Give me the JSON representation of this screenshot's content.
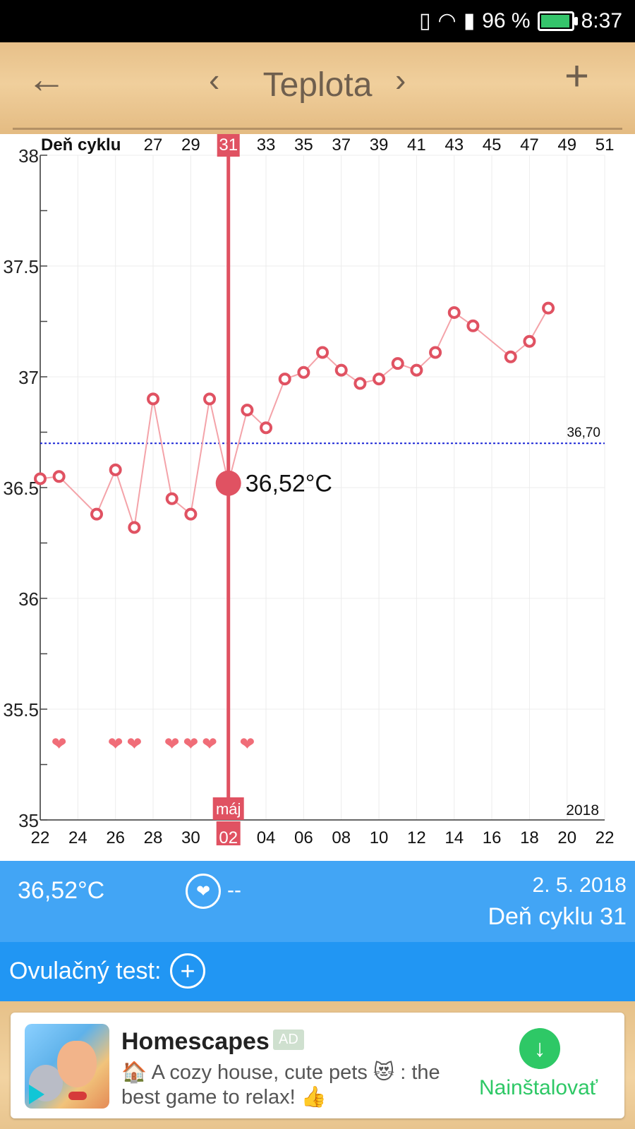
{
  "status_bar": {
    "battery": "96 %",
    "time": "8:37",
    "battery_level": 0.96
  },
  "toolbar": {
    "title": "Teplota",
    "back_icon": "arrow-left-icon",
    "prev_icon": "chevron-left-icon",
    "next_icon": "chevron-right-icon",
    "add_icon": "plus-icon"
  },
  "chart_data": {
    "type": "line",
    "top_axis_label": "Deň cyklu",
    "top_ticks": [
      "27",
      "29",
      "31",
      "33",
      "35",
      "37",
      "39",
      "41",
      "43",
      "45",
      "47",
      "49",
      "51"
    ],
    "bottom_ticks": [
      "22",
      "24",
      "26",
      "28",
      "30",
      "02",
      "04",
      "06",
      "08",
      "10",
      "12",
      "14",
      "16",
      "18",
      "20",
      "22"
    ],
    "y_ticks": [
      "35",
      "35.5",
      "36",
      "36.5",
      "37",
      "37.5",
      "38"
    ],
    "ylim": [
      35,
      38
    ],
    "month_label": "máj",
    "year_label": "2018",
    "selected_day": "31",
    "selected_value_label": "36,52°C",
    "reference_label": "36,70",
    "reference_value": 36.7,
    "series": [
      {
        "x": [
          "22.4.",
          "23.4.",
          "25.4.",
          "26.4.",
          "27.4.",
          "28.4.",
          "29.4.",
          "30.4.",
          "1.5.",
          "2.5.",
          "3.5.",
          "4.5.",
          "5.5.",
          "6.5.",
          "7.5.",
          "8.5.",
          "9.5.",
          "10.5.",
          "11.5.",
          "12.5.",
          "13.5.",
          "14.5.",
          "15.5.",
          "17.5.",
          "18.5.",
          "19.5."
        ],
        "values": [
          36.54,
          36.55,
          36.38,
          36.58,
          36.32,
          36.9,
          36.45,
          36.38,
          36.9,
          36.52,
          36.85,
          36.77,
          36.99,
          37.02,
          37.11,
          37.03,
          36.97,
          36.99,
          37.06,
          37.03,
          37.11,
          37.29,
          37.23,
          37.09,
          37.16,
          37.31
        ]
      }
    ],
    "heart_days": [
      "23.4.",
      "26.4.",
      "27.4.",
      "29.4.",
      "30.4.",
      "1.5.",
      "3.5."
    ]
  },
  "info_bar": {
    "temperature": "36,52°C",
    "intercourse_value": "--",
    "date": "2. 5. 2018",
    "cycle_day": "Deň cyklu 31"
  },
  "ovulation": {
    "label": "Ovulačný test:"
  },
  "ad": {
    "title": "Homescapes",
    "tag": "AD",
    "text": "🏠 A cozy house, cute pets 😻 : the best game to relax! 👍",
    "cta": "Nainštalovať"
  },
  "colors": {
    "accent": "#e05262",
    "line": "#f4a3a9",
    "reference": "#1a25d6",
    "info_bg": "#42a5f5",
    "ovu_bg": "#2196f3",
    "cta": "#2ec866"
  }
}
